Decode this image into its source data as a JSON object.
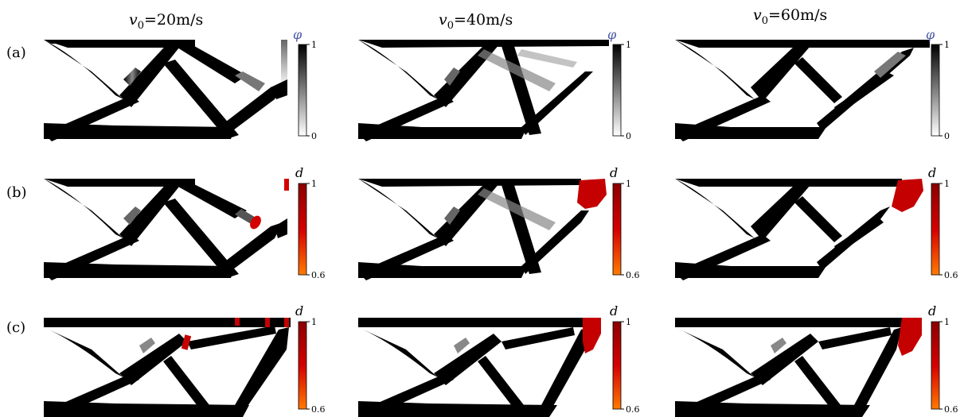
{
  "figure": {
    "columns": [
      {
        "prefix": "v",
        "sub": "0",
        "suffix": "=20m/s"
      },
      {
        "prefix": "v",
        "sub": "0",
        "suffix": "=40m/s"
      },
      {
        "prefix": "v",
        "sub": "0",
        "suffix": "=60m/s"
      }
    ],
    "rows": [
      {
        "label": "(a)",
        "colorbar": {
          "symbol": "φ",
          "max": "1",
          "min": "0",
          "type": "gray"
        }
      },
      {
        "label": "(b)",
        "colorbar": {
          "symbol": "d",
          "max": "1",
          "min": "0.6",
          "type": "red"
        }
      },
      {
        "label": "(c)",
        "colorbar": {
          "symbol": "d",
          "max": "1",
          "min": "0.6",
          "type": "red"
        }
      }
    ],
    "colors": {
      "material": "#000000",
      "background": "#ffffff",
      "damage_dark": "#8b0000",
      "damage_mid": "#d40000",
      "damage_light": "#ff7a00",
      "phi_symbol": "#4a5aa8"
    }
  }
}
